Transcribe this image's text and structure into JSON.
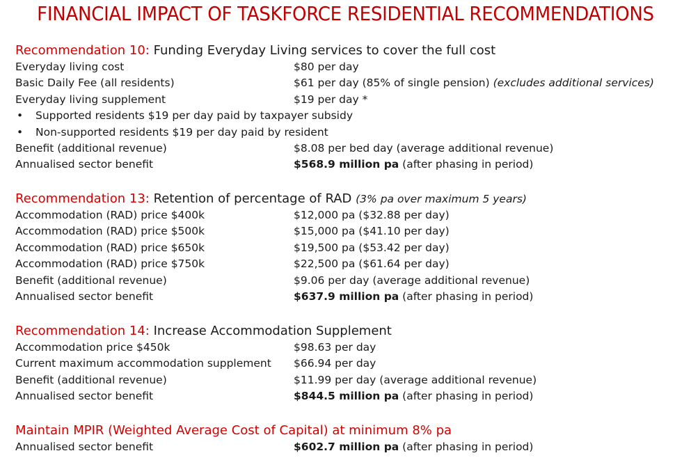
{
  "title": "FINANCIAL IMPACT OF TASKFORCE RESIDENTIAL RECOMMENDATIONS",
  "rec10": {
    "label": "Recommendation 10:",
    "desc": "Funding Everyday Living services to cover the full cost",
    "rows": [
      {
        "label": "Everyday living cost",
        "value": "$80 per day"
      },
      {
        "label": "Basic Daily Fee (all residents)",
        "value": "$61 per day (85% of single pension) ",
        "note": "(excludes additional services)"
      },
      {
        "label": "Everyday living supplement",
        "value": "$19 per day *"
      }
    ],
    "bullets": [
      "Supported residents $19 per day paid by taxpayer subsidy",
      "Non-supported residents $19 per day paid by resident"
    ],
    "benefit": {
      "label": "Benefit (additional revenue)",
      "value": "$8.08 per bed day (average additional revenue)"
    },
    "annual": {
      "label": "Annualised sector benefit",
      "bold": "$568.9 million pa",
      "rest": " (after phasing in period)"
    }
  },
  "rec13": {
    "label": "Recommendation 13:",
    "desc": "Retention of percentage of RAD ",
    "subnote": "(3% pa over maximum 5 years)",
    "rows": [
      {
        "label": "Accommodation (RAD) price $400k",
        "value": "$12,000 pa ($32.88 per day)"
      },
      {
        "label": "Accommodation (RAD) price $500k",
        "value": "$15,000 pa ($41.10 per day)"
      },
      {
        "label": "Accommodation (RAD) price $650k",
        "value": "$19,500 pa ($53.42 per day)"
      },
      {
        "label": "Accommodation (RAD) price $750k",
        "value": "$22,500 pa ($61.64 per day)"
      }
    ],
    "benefit": {
      "label": "Benefit (additional revenue)",
      "value": "$9.06 per day (average additional revenue)"
    },
    "annual": {
      "label": "Annualised sector benefit",
      "bold": "$637.9 million pa",
      "rest": " (after phasing in period)"
    }
  },
  "rec14": {
    "label": "Recommendation 14:",
    "desc": "Increase Accommodation Supplement",
    "rows": [
      {
        "label": "Accommodation price $450k",
        "value": "$98.63 per day"
      },
      {
        "label": "Current maximum accommodation supplement",
        "value": "$66.94 per day"
      }
    ],
    "benefit": {
      "label": "Benefit (additional revenue)",
      "value": "$11.99 per day (average additional revenue)"
    },
    "annual": {
      "label": "Annualised sector benefit",
      "bold": "$844.5 million pa",
      "rest": " (after phasing in period)"
    }
  },
  "mpir": {
    "label": "Maintain MPIR (Weighted Average Cost of Capital) at minimum 8% pa",
    "annual": {
      "label": "Annualised sector benefit",
      "bold": "$602.7 million pa",
      "rest": " (after phasing in period)"
    }
  },
  "colors": {
    "title": "#c00000",
    "heading": "#d40000",
    "text": "#1a1a1a"
  }
}
